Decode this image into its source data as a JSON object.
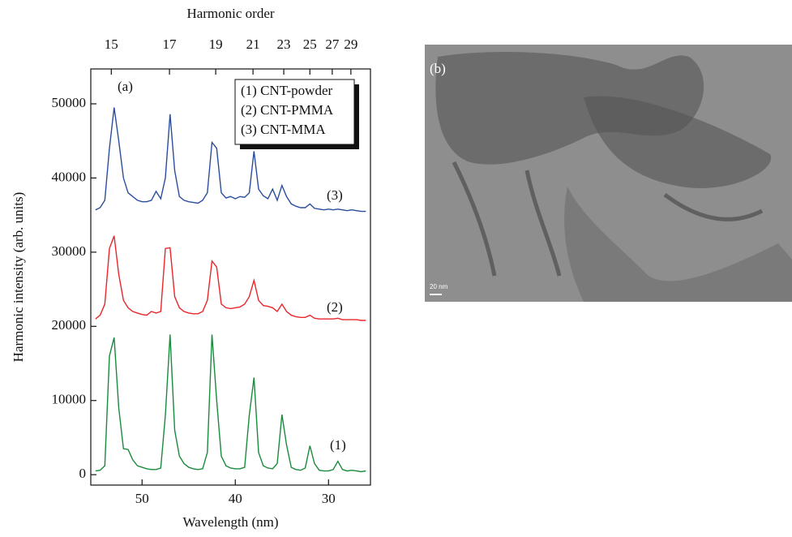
{
  "chart_data": {
    "type": "line",
    "xlabel": "Wavelength (nm)",
    "ylabel": "Harmonic intensity (arb. units)",
    "x2label": "Harmonic order",
    "xlim": [
      55.5,
      25.5
    ],
    "ylim": [
      -1400,
      54700
    ],
    "xticks": [
      50,
      40,
      30
    ],
    "yticks": [
      0,
      10000,
      20000,
      30000,
      40000,
      50000
    ],
    "x2ticks": [
      {
        "value": 53.3,
        "label": "15"
      },
      {
        "value": 47.06,
        "label": "17"
      },
      {
        "value": 42.1,
        "label": "19"
      },
      {
        "value": 38.1,
        "label": "21"
      },
      {
        "value": 34.8,
        "label": "23"
      },
      {
        "value": 32.0,
        "label": "25"
      },
      {
        "value": 29.6,
        "label": "27"
      },
      {
        "value": 27.6,
        "label": "29"
      }
    ],
    "x": [
      55.0,
      54.5,
      54.0,
      53.5,
      53.0,
      52.5,
      52.0,
      51.5,
      51.0,
      50.5,
      50.0,
      49.5,
      49.0,
      48.5,
      48.0,
      47.5,
      47.0,
      46.5,
      46.0,
      45.5,
      45.0,
      44.5,
      44.0,
      43.5,
      43.0,
      42.5,
      42.0,
      41.5,
      41.0,
      40.5,
      40.0,
      39.5,
      39.0,
      38.5,
      38.0,
      37.5,
      37.0,
      36.5,
      36.0,
      35.5,
      35.0,
      34.5,
      34.0,
      33.5,
      33.0,
      32.5,
      32.0,
      31.5,
      31.0,
      30.5,
      30.0,
      29.5,
      29.0,
      28.5,
      28.0,
      27.5,
      27.0,
      26.5,
      26.0
    ],
    "series": [
      {
        "name": "(1) CNT-powder",
        "color": "#1a8a3c",
        "values": [
          500,
          600,
          1200,
          16000,
          18500,
          9000,
          3500,
          3400,
          2000,
          1200,
          1000,
          800,
          700,
          700,
          900,
          8000,
          18900,
          6000,
          2500,
          1500,
          1000,
          800,
          700,
          800,
          3000,
          18900,
          10000,
          2500,
          1200,
          900,
          800,
          800,
          1000,
          8000,
          13100,
          3000,
          1200,
          900,
          800,
          1500,
          8100,
          4000,
          1000,
          700,
          600,
          900,
          3900,
          1500,
          600,
          500,
          500,
          700,
          1800,
          700,
          500,
          600,
          500,
          400,
          500
        ]
      },
      {
        "name": "(2) CNT-PMMA",
        "color": "#e8262b",
        "values": [
          21000,
          21500,
          23000,
          30500,
          32200,
          27000,
          23500,
          22500,
          22000,
          21800,
          21600,
          21500,
          22000,
          21800,
          22000,
          30500,
          30600,
          24000,
          22500,
          22000,
          21800,
          21700,
          21700,
          22000,
          23500,
          28800,
          28000,
          23000,
          22500,
          22400,
          22500,
          22600,
          23000,
          24000,
          26200,
          23500,
          22800,
          22700,
          22500,
          22000,
          23000,
          22000,
          21500,
          21300,
          21200,
          21200,
          21500,
          21100,
          21000,
          21000,
          21000,
          21000,
          21100,
          20900,
          20900,
          20900,
          20900,
          20800,
          20800
        ]
      },
      {
        "name": "(3) CNT-MMA",
        "color": "#2a4d9c",
        "values": [
          35700,
          36000,
          37000,
          44000,
          49500,
          45000,
          40000,
          38000,
          37500,
          37000,
          36800,
          36800,
          37000,
          38200,
          37200,
          40000,
          48600,
          41000,
          37500,
          37000,
          36800,
          36700,
          36600,
          37000,
          38000,
          44800,
          44000,
          38000,
          37300,
          37500,
          37200,
          37500,
          37400,
          38000,
          43600,
          38500,
          37600,
          37200,
          38500,
          37000,
          39000,
          37500,
          36500,
          36200,
          36000,
          36000,
          36500,
          35900,
          35800,
          35700,
          35800,
          35700,
          35800,
          35700,
          35600,
          35700,
          35600,
          35500,
          35500
        ]
      }
    ],
    "annotations": [
      "(a)",
      "(1)",
      "(2)",
      "(3)"
    ]
  },
  "image_panel": {
    "label": "(b)",
    "scale_bar": "20 nm"
  }
}
